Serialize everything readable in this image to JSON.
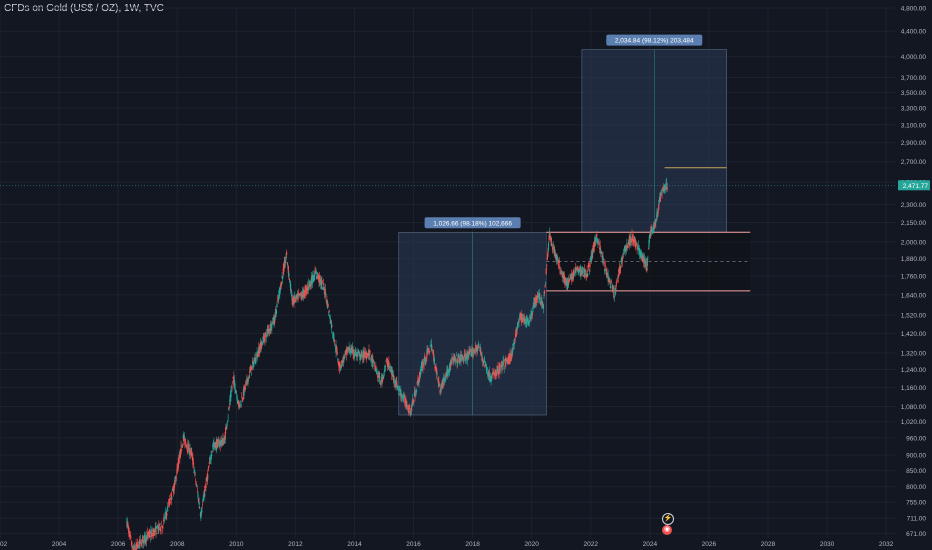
{
  "header": {
    "title": "CFDs on Gold (US$ / OZ), 1W, TVC"
  },
  "colors": {
    "background": "#131722",
    "up": "#26a69a",
    "down": "#ef5350",
    "box_fill": "#2a3a55",
    "box_border": "#5b6b86",
    "channel_line": "#f7a5a5",
    "price_tag": "#26a69a",
    "target_line": "#c9a45a"
  },
  "chart_data": {
    "type": "candlestick",
    "symbol": "CFDs on Gold (US$ / OZ)",
    "interval": "1W",
    "source": "TVC",
    "y_scale": "log",
    "ylim": [
      660,
      4800
    ],
    "xlim": [
      2002,
      2032.3
    ],
    "x_ticks": [
      "2002",
      "2004",
      "2006",
      "2008",
      "2010",
      "2012",
      "2014",
      "2016",
      "2018",
      "2020",
      "2022",
      "2024",
      "2026",
      "2028",
      "2030",
      "2032"
    ],
    "y_ticks": [
      4800,
      4400,
      4000,
      3700,
      3500,
      3300,
      3100,
      2900,
      2700,
      2500,
      2300,
      2150,
      2000,
      1880,
      1760,
      1640,
      1520,
      1420,
      1320,
      1240,
      1160,
      1080,
      1020,
      960,
      900,
      850,
      800,
      755,
      711,
      671
    ],
    "y_tick_labels": [
      "4,800.00",
      "4,400.00",
      "4,000.00",
      "3,700.00",
      "3,500.00",
      "3,300.00",
      "3,100.00",
      "2,900.00",
      "2,700.00",
      "2,500.00",
      "2,300.00",
      "2,150.00",
      "2,000.00",
      "1,880.00",
      "1,760.00",
      "1,640.00",
      "1,520.00",
      "1,420.00",
      "1,320.00",
      "1,240.00",
      "1,160.00",
      "1,080.00",
      "1,020.00",
      "960.00",
      "900.00",
      "850.00",
      "800.00",
      "755.00",
      "711.00",
      "671.00"
    ],
    "price_path": [
      [
        2006.3,
        700
      ],
      [
        2006.5,
        630
      ],
      [
        2007.0,
        665
      ],
      [
        2007.5,
        690
      ],
      [
        2007.9,
        800
      ],
      [
        2008.2,
        960
      ],
      [
        2008.5,
        900
      ],
      [
        2008.8,
        720
      ],
      [
        2009.2,
        930
      ],
      [
        2009.6,
        950
      ],
      [
        2009.9,
        1200
      ],
      [
        2010.1,
        1080
      ],
      [
        2010.5,
        1240
      ],
      [
        2010.9,
        1380
      ],
      [
        2011.3,
        1500
      ],
      [
        2011.6,
        1800
      ],
      [
        2011.7,
        1900
      ],
      [
        2011.9,
        1600
      ],
      [
        2012.3,
        1650
      ],
      [
        2012.7,
        1780
      ],
      [
        2013.0,
        1670
      ],
      [
        2013.3,
        1400
      ],
      [
        2013.5,
        1250
      ],
      [
        2013.8,
        1340
      ],
      [
        2014.2,
        1300
      ],
      [
        2014.5,
        1320
      ],
      [
        2014.9,
        1180
      ],
      [
        2015.1,
        1280
      ],
      [
        2015.5,
        1150
      ],
      [
        2015.9,
        1060
      ],
      [
        2016.3,
        1260
      ],
      [
        2016.6,
        1360
      ],
      [
        2016.9,
        1150
      ],
      [
        2017.3,
        1280
      ],
      [
        2017.8,
        1300
      ],
      [
        2018.2,
        1350
      ],
      [
        2018.6,
        1200
      ],
      [
        2018.9,
        1240
      ],
      [
        2019.3,
        1300
      ],
      [
        2019.6,
        1510
      ],
      [
        2019.9,
        1480
      ],
      [
        2020.2,
        1640
      ],
      [
        2020.4,
        1580
      ],
      [
        2020.6,
        2050
      ],
      [
        2020.9,
        1850
      ],
      [
        2021.2,
        1700
      ],
      [
        2021.5,
        1800
      ],
      [
        2021.9,
        1780
      ],
      [
        2022.2,
        2050
      ],
      [
        2022.5,
        1800
      ],
      [
        2022.8,
        1640
      ],
      [
        2023.1,
        1920
      ],
      [
        2023.4,
        2040
      ],
      [
        2023.6,
        1950
      ],
      [
        2023.9,
        1820
      ],
      [
        2024.0,
        2060
      ],
      [
        2024.2,
        2150
      ],
      [
        2024.4,
        2420
      ],
      [
        2024.6,
        2470
      ]
    ],
    "last_price": 2471.77,
    "last_price_label": "2,471.77",
    "measure_boxes": [
      {
        "label": "1,026.66 (98.18%) 102,666",
        "x0": 2015.5,
        "x1": 2020.5,
        "y0": 1046,
        "y1": 2073
      },
      {
        "label": "2,034.84 (98.12%) 203,484",
        "x0": 2021.7,
        "x1": 2026.6,
        "y0": 2073,
        "y1": 4107
      }
    ],
    "channel": {
      "x0": 2020.5,
      "x1": 2027.4,
      "top": 2073,
      "bottom": 1665,
      "mid": 1858
    },
    "target_line": {
      "x0": 2024.5,
      "x1": 2026.6,
      "y": 2640
    }
  }
}
